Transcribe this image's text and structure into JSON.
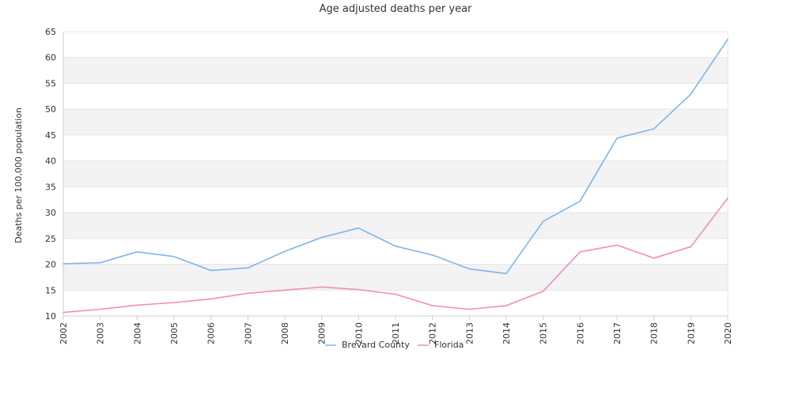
{
  "chart_data": {
    "type": "line",
    "title": "Age adjusted deaths per year",
    "xlabel": "",
    "ylabel": "Deaths per 100,000 population",
    "x": [
      "2002",
      "2003",
      "2004",
      "2005",
      "2006",
      "2007",
      "2008",
      "2009",
      "2010",
      "2011",
      "2012",
      "2013",
      "2014",
      "2015",
      "2016",
      "2017",
      "2018",
      "2019",
      "2020"
    ],
    "ylim": [
      10,
      65
    ],
    "yticks": [
      10,
      15,
      20,
      25,
      30,
      35,
      40,
      45,
      50,
      55,
      60,
      65
    ],
    "grid": "horizontal bands",
    "legend_position": "bottom-center",
    "series": [
      {
        "name": "Brevard County",
        "color": "#7cb5ec",
        "values": [
          20.1,
          20.3,
          22.4,
          21.5,
          18.8,
          19.3,
          22.5,
          25.2,
          27.0,
          23.5,
          21.8,
          19.1,
          18.2,
          28.3,
          32.2,
          44.4,
          46.2,
          52.9,
          63.5
        ]
      },
      {
        "name": "Florida",
        "color": "#f28cbf",
        "values": [
          10.7,
          11.3,
          12.1,
          12.6,
          13.3,
          14.4,
          15.0,
          15.6,
          15.1,
          14.2,
          12.0,
          11.3,
          12.0,
          14.8,
          22.4,
          23.7,
          21.2,
          23.4,
          32.8
        ]
      }
    ]
  }
}
